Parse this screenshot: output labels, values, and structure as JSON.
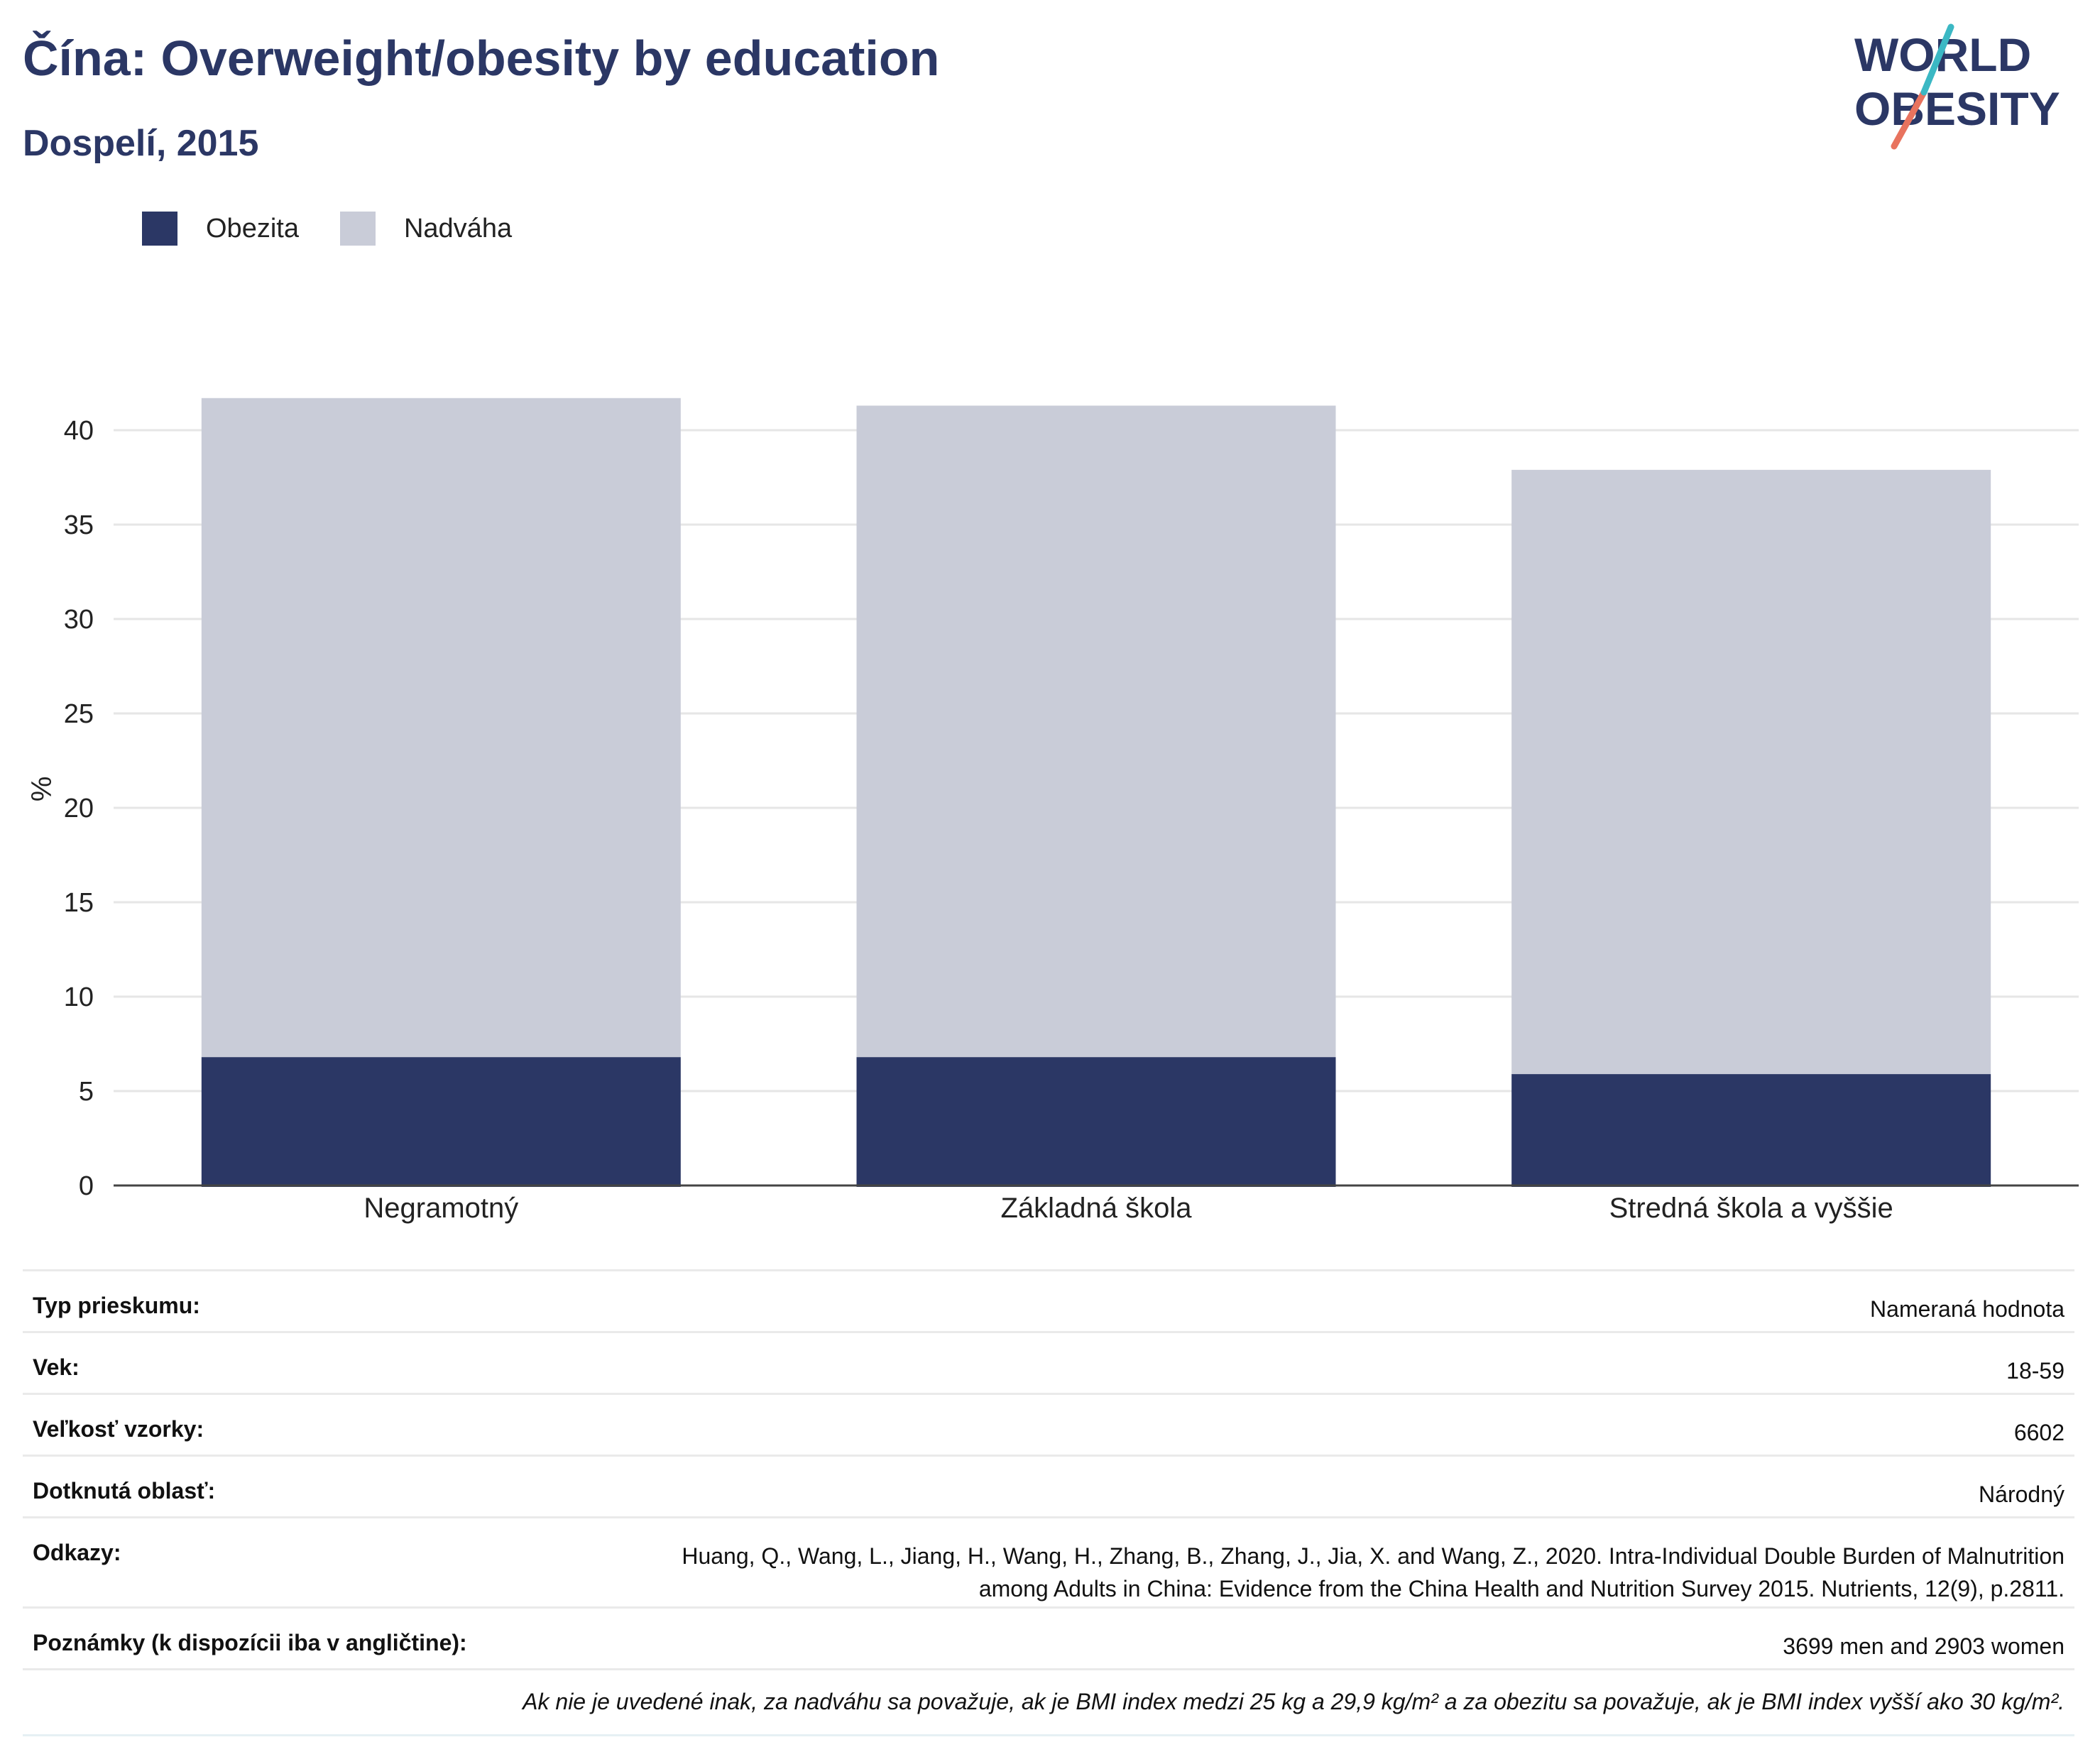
{
  "header": {
    "title": "Čína: Overweight/obesity by education",
    "subtitle": "Dospelí, 2015"
  },
  "logo": {
    "line1": "WORLD",
    "line2": "OBESITY"
  },
  "colors": {
    "obesity": "#2b3765",
    "overweight": "#c9ccd8",
    "title": "#2b3765",
    "logo_teal": "#3bb8c4",
    "logo_coral": "#e8735e"
  },
  "chart_data": {
    "type": "bar",
    "stacked": true,
    "categories": [
      "Negramotný",
      "Základná škola",
      "Stredná škola a vyššie"
    ],
    "series": [
      {
        "name": "Obezita",
        "values": [
          6.8,
          6.8,
          5.9
        ]
      },
      {
        "name": "Nadváha",
        "values": [
          34.9,
          34.5,
          32.0
        ]
      }
    ],
    "ylabel": "%",
    "ylim": [
      0,
      42
    ],
    "yticks": [
      0,
      5,
      10,
      15,
      20,
      25,
      30,
      35,
      40
    ],
    "grid": true,
    "legend": "top-left"
  },
  "info": {
    "rows": [
      {
        "label": "Typ prieskumu:",
        "value": "Nameraná hodnota"
      },
      {
        "label": "Vek:",
        "value": "18-59"
      },
      {
        "label": "Veľkosť vzorky:",
        "value": "6602"
      },
      {
        "label": "Dotknutá oblasť:",
        "value": "Národný"
      },
      {
        "label": "Odkazy:",
        "value_lines": [
          "Huang, Q., Wang, L., Jiang, H., Wang, H., Zhang, B., Zhang, J., Jia, X. and Wang, Z., 2020. Intra-Individual Double Burden of Malnutrition",
          "among Adults in China: Evidence from the China Health and Nutrition Survey 2015. Nutrients, 12(9), p.2811."
        ]
      },
      {
        "label": "Poznámky (k dispozícii iba v angličtine):",
        "value": "3699 men and 2903 women"
      }
    ],
    "footnote": "Ak nie je uvedené inak, za nadváhu sa považuje, ak je BMI index medzi 25 kg a 29,9 kg/m² a za obezitu sa považuje, ak je BMI index vyšší ako 30 kg/m²."
  }
}
